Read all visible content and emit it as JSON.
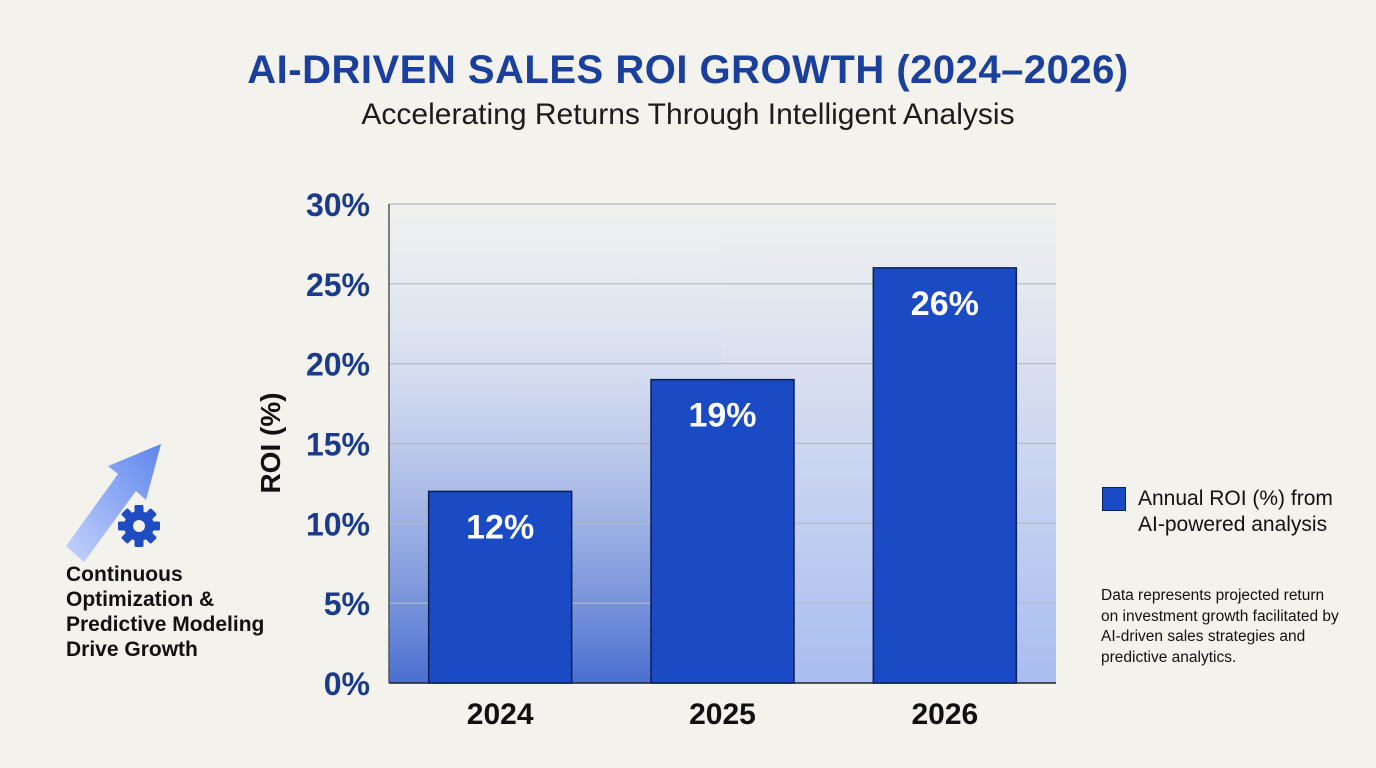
{
  "chart_data": {
    "type": "bar",
    "title": "AI-DRIVEN SALES ROI GROWTH (2024–2026)",
    "subtitle": "Accelerating Returns Through Intelligent Analysis",
    "categories": [
      "2024",
      "2025",
      "2026"
    ],
    "series": [
      {
        "name": "Annual ROI (%) from AI-powered analysis",
        "values": [
          12,
          19,
          26
        ]
      }
    ],
    "data_labels": [
      "12%",
      "19%",
      "26%"
    ],
    "ylabel": "ROI (%)",
    "xlabel": "",
    "ylim": [
      0,
      30
    ],
    "yticks": [
      0,
      5,
      10,
      15,
      20,
      25,
      30
    ],
    "ytick_labels": [
      "0%",
      "5%",
      "10%",
      "15%",
      "20%",
      "25%",
      "30%"
    ],
    "grid": true,
    "legend_position": "right",
    "bar_color": "#1a4ac4"
  },
  "side_note": {
    "text": "Continuous Optimization & Predictive Modeling Drive Growth",
    "icons": [
      "up-arrow-icon",
      "gear-icon"
    ]
  },
  "legend": {
    "label": "Annual ROI (%) from AI-powered analysis"
  },
  "footnote": "Data represents projected return on investment growth facilitated by AI-driven sales strategies and predictive analytics."
}
